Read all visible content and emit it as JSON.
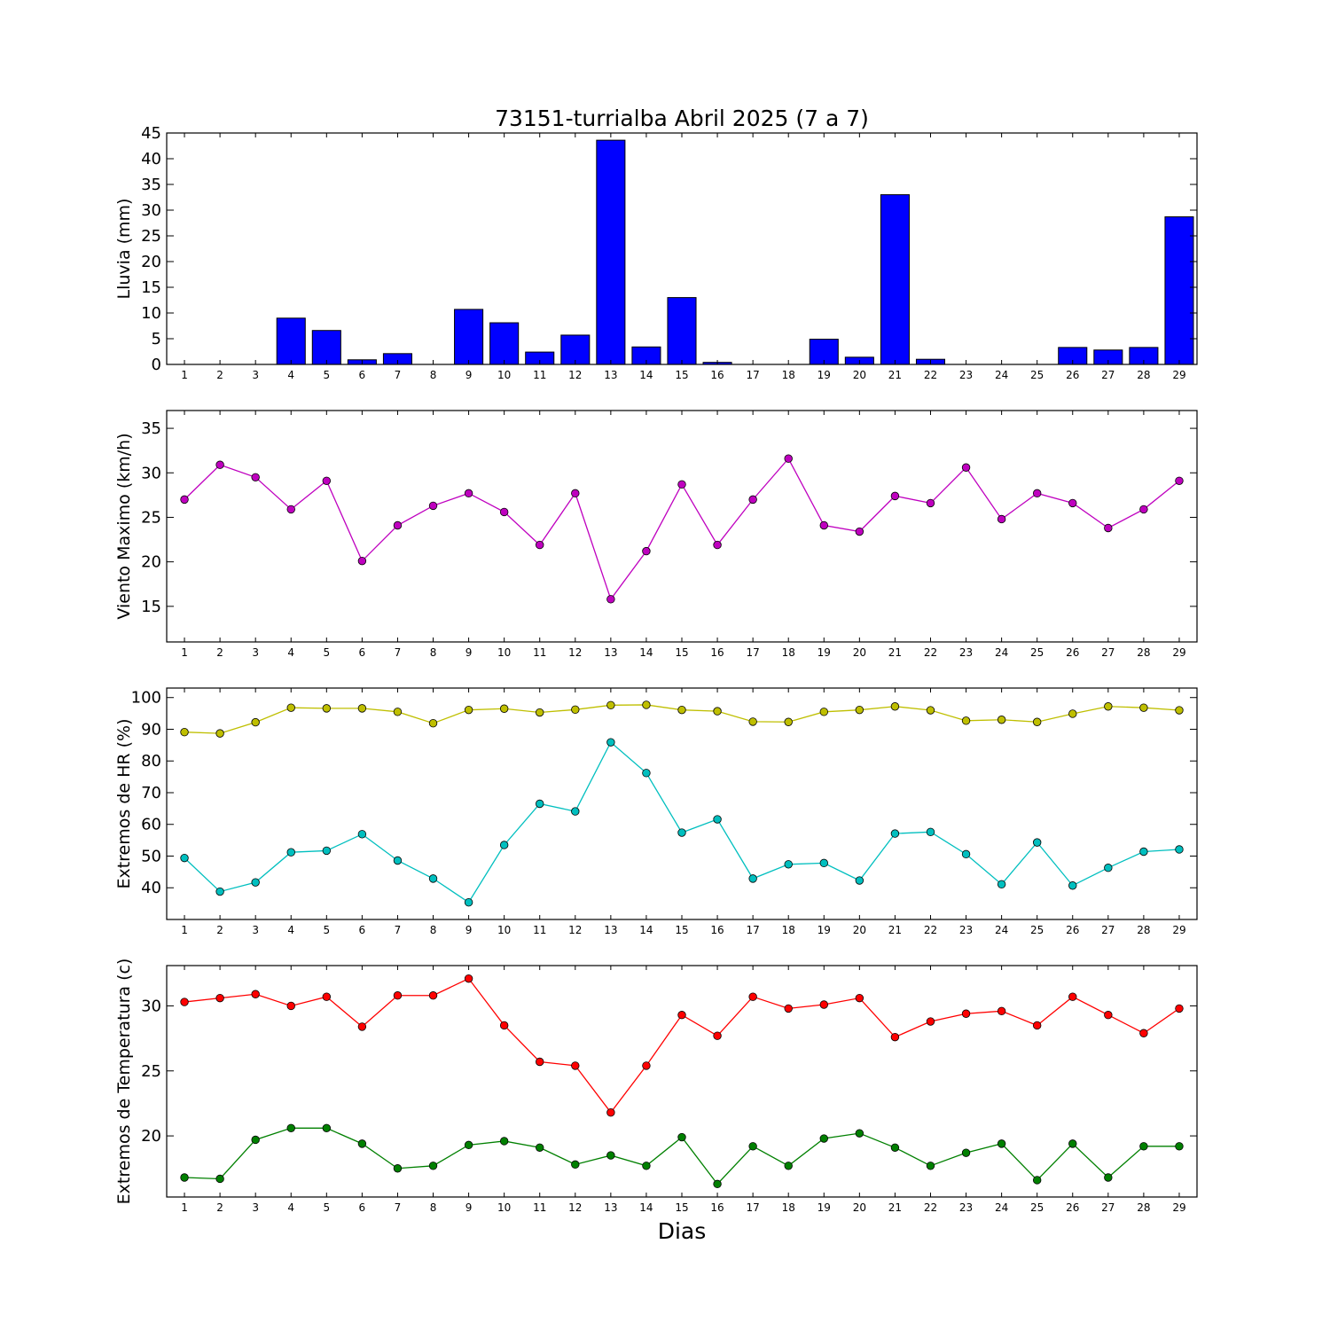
{
  "chart_data": [
    {
      "type": "bar",
      "title": "73151-turrialba Abril 2025  (7 a 7)",
      "xlabel": "",
      "ylabel": "Lluvia (mm)",
      "ylim": [
        0,
        45
      ],
      "yticks": [
        0,
        5,
        10,
        15,
        20,
        25,
        30,
        35,
        40,
        45
      ],
      "categories": [
        "1",
        "2",
        "3",
        "4",
        "5",
        "6",
        "7",
        "8",
        "9",
        "10",
        "11",
        "12",
        "13",
        "14",
        "15",
        "16",
        "17",
        "18",
        "19",
        "20",
        "21",
        "22",
        "23",
        "24",
        "25",
        "26",
        "27",
        "28",
        "29"
      ],
      "series": [
        {
          "color": "#0000ff",
          "values": [
            0,
            0,
            0,
            9.0,
            6.6,
            0.9,
            2.1,
            0,
            10.7,
            8.1,
            2.4,
            5.7,
            43.6,
            3.4,
            13.0,
            0.4,
            0,
            0,
            4.9,
            1.4,
            33.0,
            1.0,
            0,
            0,
            0,
            3.3,
            2.8,
            3.3,
            28.7
          ]
        }
      ],
      "grid": false
    },
    {
      "type": "line",
      "title": "",
      "xlabel": "",
      "ylabel": "Viento Maximo (km/h)",
      "ylim": [
        11,
        37
      ],
      "yticks": [
        15,
        20,
        25,
        30,
        35
      ],
      "categories": [
        "1",
        "2",
        "3",
        "4",
        "5",
        "6",
        "7",
        "8",
        "9",
        "10",
        "11",
        "12",
        "13",
        "14",
        "15",
        "16",
        "17",
        "18",
        "19",
        "20",
        "21",
        "22",
        "23",
        "24",
        "25",
        "26",
        "27",
        "28",
        "29"
      ],
      "series": [
        {
          "color": "#bf00bf",
          "values": [
            27.0,
            30.9,
            29.5,
            25.9,
            29.1,
            20.1,
            24.1,
            26.3,
            27.7,
            25.6,
            21.9,
            27.7,
            15.8,
            21.2,
            28.7,
            21.9,
            27.0,
            31.6,
            24.1,
            23.4,
            27.4,
            26.6,
            30.6,
            24.8,
            27.7,
            26.6,
            23.8,
            25.9,
            29.1
          ]
        }
      ],
      "grid": false
    },
    {
      "type": "line",
      "title": "",
      "xlabel": "",
      "ylabel": "Extremos de HR (%)",
      "ylim": [
        30,
        103
      ],
      "yticks": [
        40,
        50,
        60,
        70,
        80,
        90,
        100
      ],
      "categories": [
        "1",
        "2",
        "3",
        "4",
        "5",
        "6",
        "7",
        "8",
        "9",
        "10",
        "11",
        "12",
        "13",
        "14",
        "15",
        "16",
        "17",
        "18",
        "19",
        "20",
        "21",
        "22",
        "23",
        "24",
        "25",
        "26",
        "27",
        "28",
        "29"
      ],
      "series": [
        {
          "color": "#bfbf00",
          "values": [
            89.1,
            88.7,
            92.2,
            96.8,
            96.6,
            96.6,
            95.5,
            91.9,
            96.1,
            96.5,
            95.3,
            96.2,
            97.6,
            97.7,
            96.1,
            95.7,
            92.4,
            92.3,
            95.5,
            96.1,
            97.2,
            96.0,
            92.7,
            93.0,
            92.3,
            94.9,
            97.2,
            96.8,
            96.0
          ]
        },
        {
          "color": "#00bfbf",
          "values": [
            49.4,
            38.8,
            41.7,
            51.2,
            51.7,
            56.9,
            48.6,
            42.9,
            35.4,
            53.5,
            66.5,
            64.1,
            85.9,
            76.2,
            57.4,
            61.6,
            42.9,
            47.4,
            47.8,
            42.3,
            57.1,
            57.6,
            50.6,
            41.1,
            54.3,
            40.7,
            46.3,
            51.4,
            52.1
          ]
        }
      ],
      "grid": false
    },
    {
      "type": "line",
      "title": "",
      "xlabel": "Dias",
      "ylabel": "Extremos de Temperatura (c)",
      "ylim": [
        15.3,
        33.1
      ],
      "yticks": [
        20,
        25,
        30
      ],
      "categories": [
        "1",
        "2",
        "3",
        "4",
        "5",
        "6",
        "7",
        "8",
        "9",
        "10",
        "11",
        "12",
        "13",
        "14",
        "15",
        "16",
        "17",
        "18",
        "19",
        "20",
        "21",
        "22",
        "23",
        "24",
        "25",
        "26",
        "27",
        "28",
        "29"
      ],
      "series": [
        {
          "color": "#ff0000",
          "values": [
            30.3,
            30.6,
            30.9,
            30.0,
            30.7,
            28.4,
            30.8,
            30.8,
            32.1,
            28.5,
            25.7,
            25.4,
            21.8,
            25.4,
            29.3,
            27.7,
            30.7,
            29.8,
            30.1,
            30.6,
            27.6,
            28.8,
            29.4,
            29.6,
            28.5,
            30.7,
            29.3,
            27.9,
            29.8
          ]
        },
        {
          "color": "#008000",
          "values": [
            16.8,
            16.7,
            19.7,
            20.6,
            20.6,
            19.4,
            17.5,
            17.7,
            19.3,
            19.6,
            19.1,
            17.8,
            18.5,
            17.7,
            19.9,
            16.3,
            19.2,
            17.7,
            19.8,
            20.2,
            19.1,
            17.7,
            18.7,
            19.4,
            16.6,
            19.4,
            16.8,
            19.2,
            19.2
          ]
        }
      ],
      "grid": false
    }
  ]
}
